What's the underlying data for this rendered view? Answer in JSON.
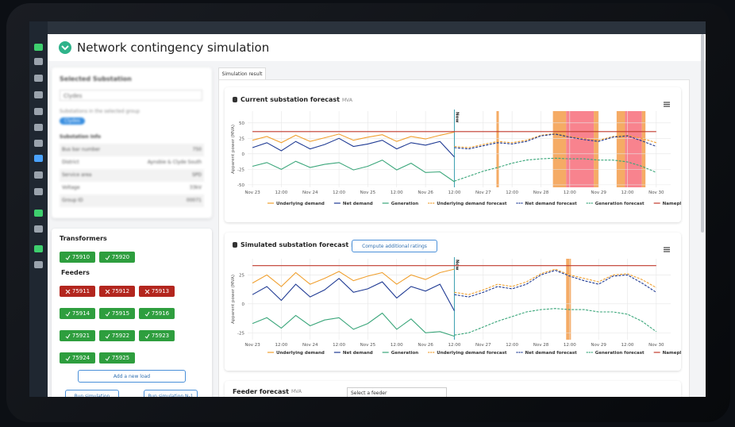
{
  "header": {
    "title": "Network contingency simulation"
  },
  "substation_panel": {
    "title": "Selected Substation",
    "select": "Clydes",
    "group_label": "Substations in the selected group",
    "group_tag": "Clydes",
    "info_title": "Substation Info",
    "rows": [
      [
        "Bus bar number",
        "750"
      ],
      [
        "District",
        "Aynsbie & Clyde South"
      ],
      [
        "Service area",
        "SPD"
      ],
      [
        "Voltage",
        "33kV"
      ],
      [
        "Group ID",
        "00071"
      ]
    ]
  },
  "equipment_panel": {
    "transformers_title": "Transformers",
    "transformers": [
      {
        "id": "75910",
        "status": "ok"
      },
      {
        "id": "75920",
        "status": "ok"
      }
    ],
    "feeders_title": "Feeders",
    "feeders": [
      {
        "id": "75911",
        "status": "fault"
      },
      {
        "id": "75912",
        "status": "fault"
      },
      {
        "id": "75913",
        "status": "fault"
      },
      {
        "id": "75914",
        "status": "ok"
      },
      {
        "id": "75915",
        "status": "ok"
      },
      {
        "id": "75916",
        "status": "ok"
      },
      {
        "id": "75921",
        "status": "ok"
      },
      {
        "id": "75922",
        "status": "ok"
      },
      {
        "id": "75923",
        "status": "ok"
      },
      {
        "id": "75924",
        "status": "ok"
      },
      {
        "id": "75925",
        "status": "ok"
      }
    ],
    "add_load": "Add a new load",
    "run": "Run simulation",
    "run_n1": "Run simulation N-1"
  },
  "tabs": [
    "Simulation result"
  ],
  "compute_button": "Compute additional ratings",
  "feeder_panel": {
    "title": "Feeder forecast",
    "unit": "MVA",
    "select": "Select a feeder"
  },
  "chart_data": [
    {
      "type": "line",
      "title": "Current substation forecast",
      "subtitle": "MVA",
      "y_label": "Apparent power (MVA)",
      "annotation": "Now",
      "now": 84,
      "x": [
        0,
        6,
        12,
        18,
        24,
        30,
        36,
        42,
        48,
        54,
        60,
        66,
        72,
        78,
        84,
        90,
        96,
        102,
        108,
        114,
        120,
        126,
        132,
        138,
        144,
        150,
        156,
        162,
        168
      ],
      "xlim": [
        -2,
        174
      ],
      "xticks": [
        {
          "value": 0,
          "label": "Nov 23"
        },
        {
          "value": 12,
          "label": "12:00"
        },
        {
          "value": 24,
          "label": "Nov 24"
        },
        {
          "value": 36,
          "label": "12:00"
        },
        {
          "value": 48,
          "label": "Nov 25"
        },
        {
          "value": 60,
          "label": "12:00"
        },
        {
          "value": 72,
          "label": "Nov 26"
        },
        {
          "value": 84,
          "label": "12:00"
        },
        {
          "value": 96,
          "label": "Nov 27"
        },
        {
          "value": 108,
          "label": "12:00"
        },
        {
          "value": 120,
          "label": "Nov 28"
        },
        {
          "value": 132,
          "label": "12:00"
        },
        {
          "value": 144,
          "label": "Nov 29"
        },
        {
          "value": 156,
          "label": "12:00"
        },
        {
          "value": 168,
          "label": "Nov 30"
        }
      ],
      "ylim": [
        -54,
        69
      ],
      "yticks": [
        50,
        25,
        0,
        -25,
        -50
      ],
      "grid": true,
      "highlights": [
        {
          "from": 101.5,
          "to": 102.5,
          "color": "#f39c4a"
        },
        {
          "from": 125,
          "to": 130.5,
          "color": "#f39c4a"
        },
        {
          "from": 130.5,
          "to": 142,
          "color": "#f76d7a"
        },
        {
          "from": 142,
          "to": 144,
          "color": "#f39c4a"
        },
        {
          "from": 151.5,
          "to": 155,
          "color": "#f39c4a"
        },
        {
          "from": 155,
          "to": 162,
          "color": "#f76d7a"
        },
        {
          "from": 162,
          "to": 163.5,
          "color": "#f39c4a"
        }
      ],
      "series": [
        {
          "name": "Underlying demand",
          "color": "#f0a030",
          "dashed": false,
          "values": [
            22,
            28,
            18,
            30,
            20,
            26,
            32,
            22,
            27,
            31,
            20,
            28,
            24,
            30,
            35,
            null,
            null,
            null,
            null,
            null,
            null,
            null,
            null,
            null,
            null,
            null,
            null,
            null,
            null
          ]
        },
        {
          "name": "Net demand",
          "color": "#1f3a93",
          "dashed": false,
          "values": [
            10,
            18,
            5,
            20,
            8,
            15,
            25,
            12,
            16,
            22,
            8,
            18,
            14,
            20,
            -5,
            null,
            null,
            null,
            null,
            null,
            null,
            null,
            null,
            null,
            null,
            null,
            null,
            null,
            null
          ]
        },
        {
          "name": "Generation",
          "color": "#3aa67a",
          "dashed": false,
          "values": [
            -20,
            -14,
            -25,
            -12,
            -22,
            -17,
            -14,
            -26,
            -20,
            -10,
            -26,
            -15,
            -30,
            -29,
            -45,
            null,
            null,
            null,
            null,
            null,
            null,
            null,
            null,
            null,
            null,
            null,
            null,
            null,
            null
          ]
        },
        {
          "name": "Underlying demand forecast",
          "color": "#f0a030",
          "dashed": true,
          "values": [
            null,
            null,
            null,
            null,
            null,
            null,
            null,
            null,
            null,
            null,
            null,
            null,
            null,
            null,
            12,
            10,
            15,
            20,
            18,
            22,
            30,
            33,
            28,
            25,
            22,
            28,
            30,
            25,
            18
          ]
        },
        {
          "name": "Net demand forecast",
          "color": "#1f3a93",
          "dashed": true,
          "values": [
            null,
            null,
            null,
            null,
            null,
            null,
            null,
            null,
            null,
            null,
            null,
            null,
            null,
            null,
            10,
            8,
            13,
            18,
            16,
            20,
            29,
            32,
            27,
            23,
            20,
            27,
            29,
            21,
            12
          ]
        },
        {
          "name": "Generation forecast",
          "color": "#3aa67a",
          "dashed": true,
          "values": [
            null,
            null,
            null,
            null,
            null,
            null,
            null,
            null,
            null,
            null,
            null,
            null,
            null,
            null,
            -44,
            -36,
            -28,
            -22,
            -15,
            -10,
            -8,
            -7,
            -8,
            -8,
            -10,
            -10,
            -13,
            -20,
            -30
          ]
        },
        {
          "name": "Nameplate Rating",
          "color": "#c0392b",
          "dashed": false,
          "values": [
            36,
            36,
            36,
            36,
            36,
            36,
            36,
            36,
            36,
            36,
            36,
            36,
            36,
            36,
            36,
            36,
            36,
            36,
            36,
            36,
            36,
            36,
            36,
            36,
            36,
            36,
            36,
            36,
            36
          ]
        }
      ]
    },
    {
      "type": "line",
      "title": "Simulated substation forecast",
      "subtitle": "MVA",
      "y_label": "Apparent power (MVA)",
      "annotation": "Now",
      "now": 84,
      "x": [
        0,
        6,
        12,
        18,
        24,
        30,
        36,
        42,
        48,
        54,
        60,
        66,
        72,
        78,
        84,
        90,
        96,
        102,
        108,
        114,
        120,
        126,
        132,
        138,
        144,
        150,
        156,
        162,
        168
      ],
      "xlim": [
        -2,
        174
      ],
      "xticks": [
        {
          "value": 0,
          "label": "Nov 23"
        },
        {
          "value": 12,
          "label": "12:00"
        },
        {
          "value": 24,
          "label": "Nov 24"
        },
        {
          "value": 36,
          "label": "12:00"
        },
        {
          "value": 48,
          "label": "Nov 25"
        },
        {
          "value": 60,
          "label": "12:00"
        },
        {
          "value": 72,
          "label": "Nov 26"
        },
        {
          "value": 84,
          "label": "12:00"
        },
        {
          "value": 96,
          "label": "Nov 27"
        },
        {
          "value": 108,
          "label": "12:00"
        },
        {
          "value": 120,
          "label": "Nov 28"
        },
        {
          "value": 132,
          "label": "12:00"
        },
        {
          "value": 144,
          "label": "Nov 29"
        },
        {
          "value": 156,
          "label": "12:00"
        },
        {
          "value": 168,
          "label": "Nov 30"
        }
      ],
      "ylim": [
        -31,
        39
      ],
      "yticks": [
        25,
        0,
        -25
      ],
      "grid": true,
      "highlights": [
        {
          "from": 130.5,
          "to": 132.5,
          "color": "#f39c4a"
        }
      ],
      "series": [
        {
          "name": "Underlying demand",
          "color": "#f0a030",
          "dashed": false,
          "values": [
            18,
            25,
            15,
            27,
            17,
            22,
            28,
            20,
            24,
            27,
            17,
            25,
            21,
            27,
            30,
            null,
            null,
            null,
            null,
            null,
            null,
            null,
            null,
            null,
            null,
            null,
            null,
            null,
            null
          ]
        },
        {
          "name": "Net demand",
          "color": "#1f3a93",
          "dashed": false,
          "values": [
            8,
            15,
            3,
            17,
            6,
            12,
            22,
            10,
            13,
            19,
            5,
            15,
            11,
            17,
            -6,
            null,
            null,
            null,
            null,
            null,
            null,
            null,
            null,
            null,
            null,
            null,
            null,
            null,
            null
          ]
        },
        {
          "name": "Generation",
          "color": "#3aa67a",
          "dashed": false,
          "values": [
            -17,
            -12,
            -21,
            -10,
            -19,
            -14,
            -12,
            -22,
            -17,
            -8,
            -22,
            -13,
            -25,
            -24,
            -28,
            null,
            null,
            null,
            null,
            null,
            null,
            null,
            null,
            null,
            null,
            null,
            null,
            null,
            null
          ]
        },
        {
          "name": "Underlying demand forecast",
          "color": "#f0a030",
          "dashed": true,
          "values": [
            null,
            null,
            null,
            null,
            null,
            null,
            null,
            null,
            null,
            null,
            null,
            null,
            null,
            null,
            10,
            8,
            12,
            17,
            15,
            19,
            26,
            30,
            25,
            22,
            19,
            25,
            26,
            21,
            14
          ]
        },
        {
          "name": "Net demand forecast",
          "color": "#1f3a93",
          "dashed": true,
          "values": [
            null,
            null,
            null,
            null,
            null,
            null,
            null,
            null,
            null,
            null,
            null,
            null,
            null,
            null,
            8,
            6,
            10,
            15,
            13,
            17,
            25,
            29,
            24,
            20,
            17,
            24,
            25,
            18,
            10
          ]
        },
        {
          "name": "Generation forecast",
          "color": "#3aa67a",
          "dashed": true,
          "values": [
            null,
            null,
            null,
            null,
            null,
            null,
            null,
            null,
            null,
            null,
            null,
            null,
            null,
            null,
            -27,
            -25,
            -20,
            -15,
            -11,
            -7,
            -5,
            -4,
            -5,
            -5,
            -7,
            -7,
            -9,
            -15,
            -24
          ]
        },
        {
          "name": "Nameplate Rating",
          "color": "#c0392b",
          "dashed": false,
          "values": [
            33,
            33,
            33,
            33,
            33,
            33,
            33,
            33,
            33,
            33,
            33,
            33,
            33,
            33,
            33,
            33,
            33,
            33,
            33,
            33,
            33,
            33,
            33,
            33,
            33,
            33,
            33,
            33,
            33
          ]
        }
      ]
    }
  ]
}
